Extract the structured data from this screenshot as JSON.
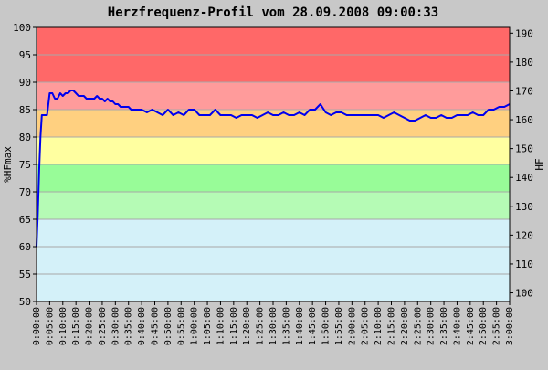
{
  "chart_data": {
    "type": "line",
    "title": "Herzfrequenz-Profil vom 28.09.2008 09:00:33",
    "ylabel_left": "%HFmax",
    "ylabel_right": "HF",
    "ylim_left": [
      50,
      100
    ],
    "ylim_right": [
      97,
      192
    ],
    "yticks_left": [
      50,
      55,
      60,
      65,
      70,
      75,
      80,
      85,
      90,
      95,
      100
    ],
    "yticks_right": [
      100,
      110,
      120,
      130,
      140,
      150,
      160,
      170,
      180,
      190
    ],
    "xlim_minutes": [
      0,
      180
    ],
    "xtick_step_minutes": 5,
    "xtick_labels": [
      "0:00:00",
      "0:05:00",
      "0:10:00",
      "0:15:00",
      "0:20:00",
      "0:25:00",
      "0:30:00",
      "0:35:00",
      "0:40:00",
      "0:45:00",
      "0:50:00",
      "0:55:00",
      "1:00:00",
      "1:05:00",
      "1:10:00",
      "1:15:00",
      "1:20:00",
      "1:25:00",
      "1:30:00",
      "1:35:00",
      "1:40:00",
      "1:45:00",
      "1:50:00",
      "1:55:00",
      "2:00:00",
      "2:05:00",
      "2:10:00",
      "2:15:00",
      "2:20:00",
      "2:25:00",
      "2:30:00",
      "2:35:00",
      "2:40:00",
      "2:45:00",
      "2:50:00",
      "2:55:00",
      "3:00:00"
    ],
    "zones": [
      {
        "from": 50,
        "to": 65,
        "color": "#d4f1f9"
      },
      {
        "from": 65,
        "to": 70,
        "color": "#b5fbb5"
      },
      {
        "from": 70,
        "to": 75,
        "color": "#98fc98"
      },
      {
        "from": 75,
        "to": 80,
        "color": "#ffffa0"
      },
      {
        "from": 80,
        "to": 85,
        "color": "#ffd080"
      },
      {
        "from": 85,
        "to": 90,
        "color": "#ff9b9b"
      },
      {
        "from": 90,
        "to": 100,
        "color": "#ff6868"
      }
    ],
    "grid": true,
    "series": [
      {
        "color": "#0000ee",
        "x": [
          0,
          0.5,
          1,
          1.5,
          2,
          3,
          4,
          5,
          6,
          7,
          8,
          9,
          10,
          11,
          12,
          13,
          14,
          15,
          16,
          17,
          18,
          19,
          20,
          21,
          22,
          23,
          24,
          25,
          26,
          27,
          28,
          29,
          30,
          31,
          32,
          33,
          34,
          35,
          36,
          38,
          40,
          42,
          44,
          46,
          48,
          50,
          52,
          54,
          56,
          58,
          60,
          62,
          64,
          66,
          68,
          70,
          72,
          74,
          76,
          78,
          80,
          82,
          84,
          86,
          88,
          90,
          92,
          94,
          96,
          98,
          100,
          102,
          104,
          106,
          108,
          110,
          112,
          114,
          116,
          118,
          120,
          122,
          124,
          126,
          128,
          130,
          132,
          134,
          136,
          138,
          140,
          142,
          144,
          146,
          148,
          150,
          152,
          154,
          156,
          158,
          160,
          162,
          164,
          166,
          168,
          170,
          172,
          174,
          176,
          178,
          180
        ],
        "y": [
          60,
          66,
          74,
          80,
          84,
          84,
          84,
          88,
          88,
          87,
          87,
          88,
          87.5,
          88,
          88,
          88.5,
          88.5,
          88,
          87.5,
          87.5,
          87.5,
          87,
          87,
          87,
          87,
          87.5,
          87,
          87,
          86.5,
          87,
          86.5,
          86.5,
          86,
          86,
          85.5,
          85.5,
          85.5,
          85.5,
          85,
          85,
          85,
          84.5,
          85,
          84.5,
          84,
          85,
          84,
          84.5,
          84,
          85,
          85,
          84,
          84,
          84,
          85,
          84,
          84,
          84,
          83.5,
          84,
          84,
          84,
          83.5,
          84,
          84.5,
          84,
          84,
          84.5,
          84,
          84,
          84.5,
          84,
          85,
          85,
          86,
          84.5,
          84,
          84.5,
          84.5,
          84,
          84,
          84,
          84,
          84,
          84,
          84,
          83.5,
          84,
          84.5,
          84,
          83.5,
          83,
          83,
          83.5,
          84,
          83.5,
          83.5,
          84,
          83.5,
          83.5,
          84,
          84,
          84,
          84.5,
          84,
          84,
          85,
          85,
          85.5,
          85.5,
          86
        ]
      }
    ]
  }
}
